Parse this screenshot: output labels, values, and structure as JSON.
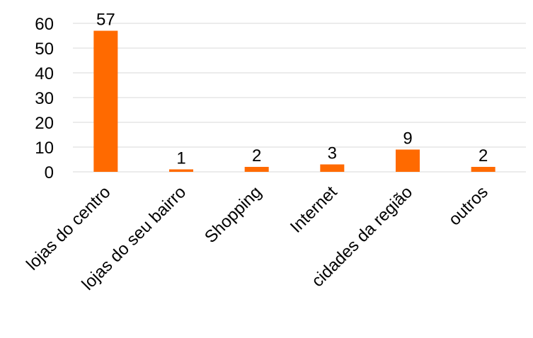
{
  "chart_data": {
    "type": "bar",
    "categories": [
      "lojas do centro",
      "lojas do seu bairro",
      "Shopping",
      "Internet",
      "cidades da região",
      "outros"
    ],
    "values": [
      57,
      1,
      2,
      3,
      9,
      2
    ],
    "data_labels": [
      "57",
      "1",
      "2",
      "3",
      "9",
      "2"
    ],
    "title": "",
    "xlabel": "",
    "ylabel": "",
    "ylim": [
      0,
      60
    ],
    "yticks": [
      0,
      10,
      20,
      30,
      40,
      50,
      60
    ],
    "ytick_labels": [
      "0",
      "10",
      "20",
      "30",
      "40",
      "50",
      "60"
    ],
    "grid": true,
    "legend": "none",
    "bar_color": "#FF6A00",
    "grid_color": "#D9D9D9"
  }
}
